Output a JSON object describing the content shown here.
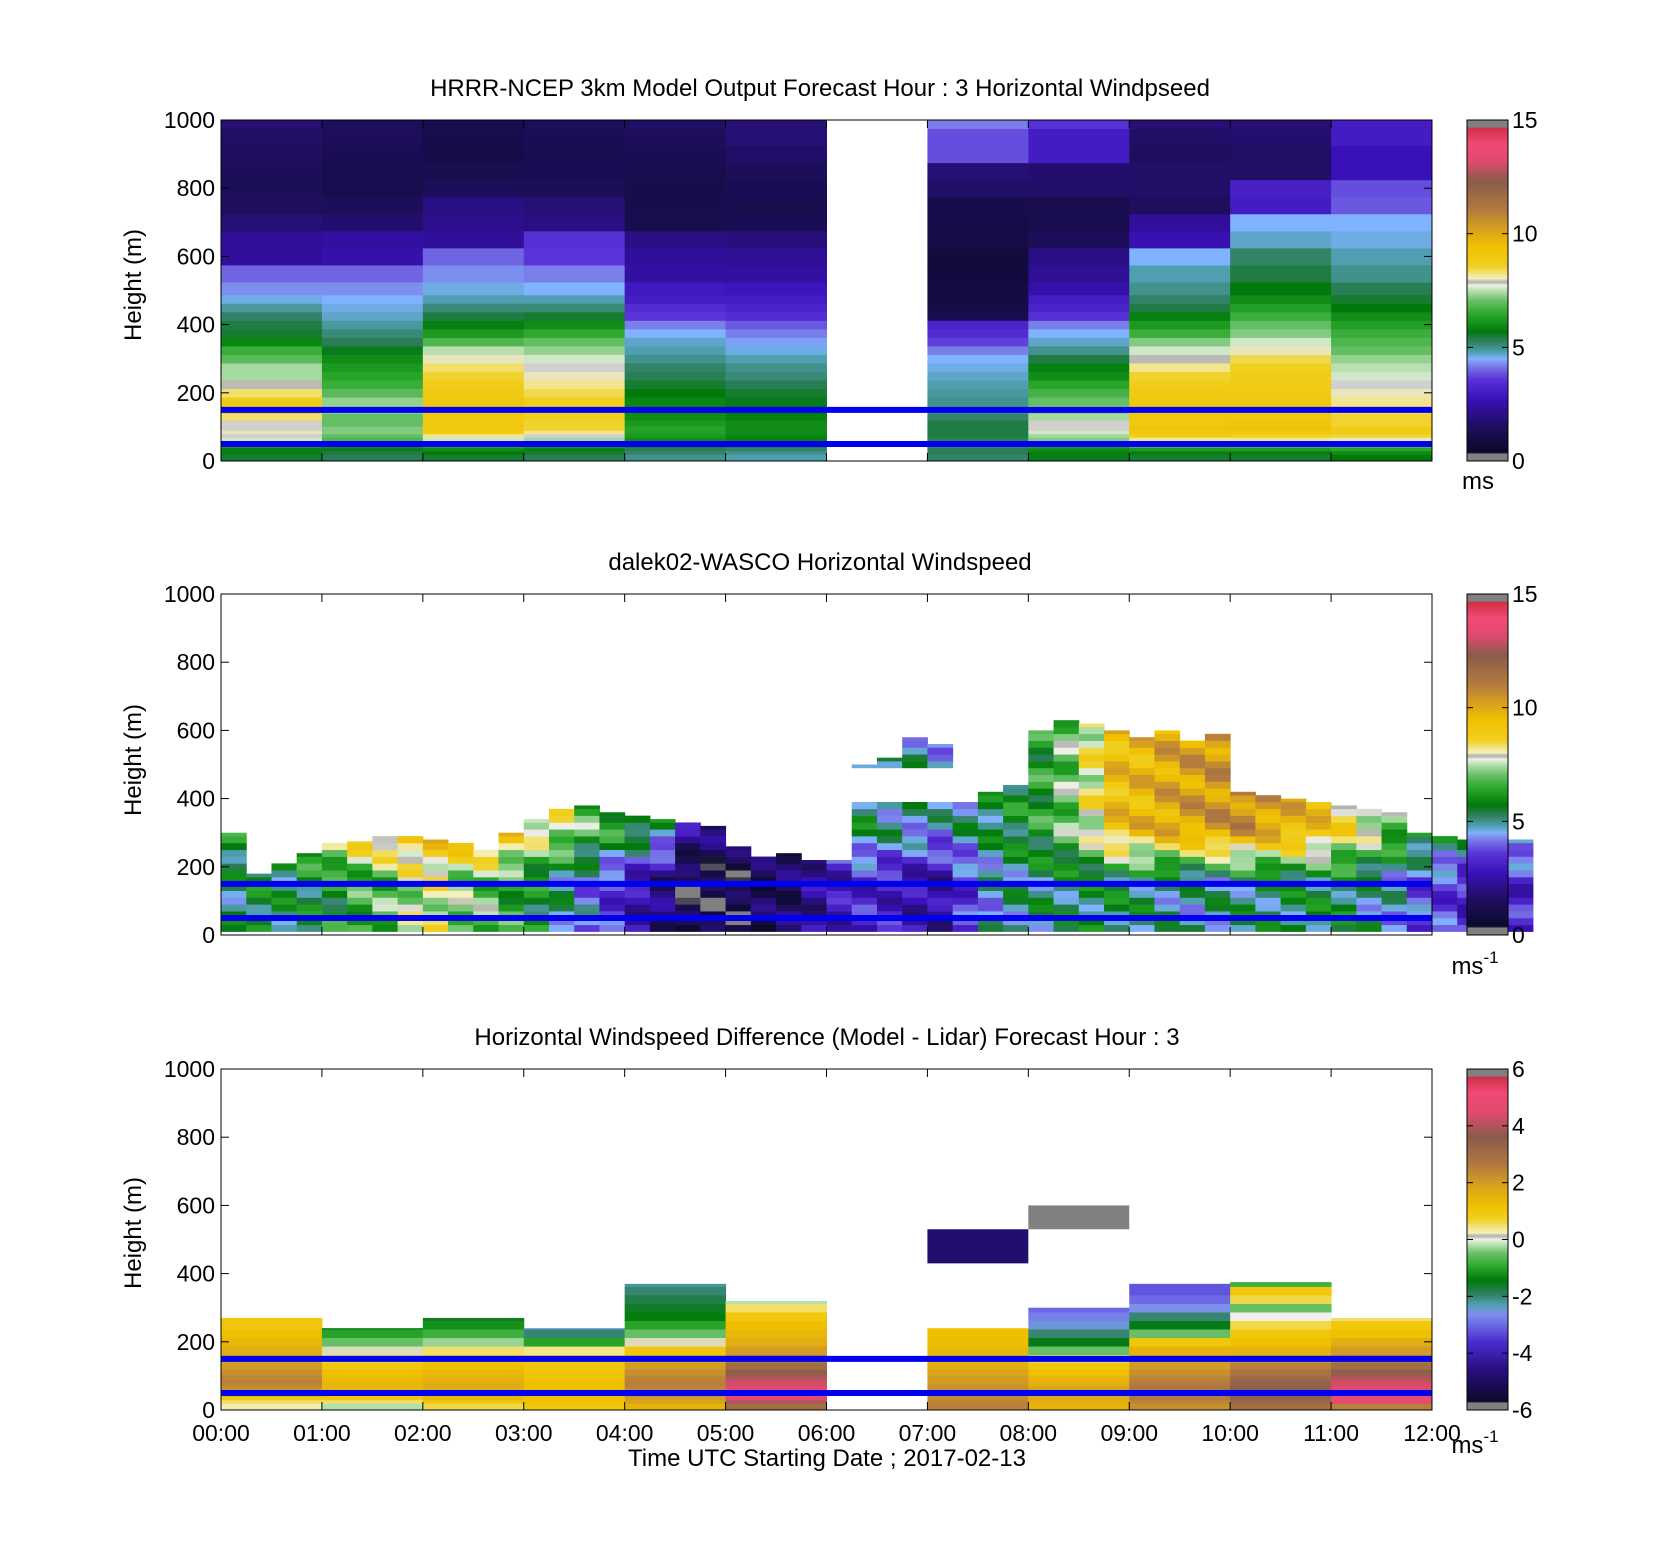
{
  "figure": {
    "xlabel": "Time UTC  Starting Date ; 2017-02-13",
    "x_ticks": [
      "00:00",
      "01:00",
      "02:00",
      "03:00",
      "04:00",
      "05:00",
      "06:00",
      "07:00",
      "08:00",
      "09:00",
      "10:00",
      "11:00",
      "12:00"
    ],
    "reference_lines_m": [
      50,
      150
    ],
    "reference_line_color": "#0000ee"
  },
  "chart_data": [
    {
      "type": "heatmap",
      "title": "HRRR-NCEP 3km Model Output   Forecast Hour : 3 Horizontal Windpseed",
      "ylabel": "Height (m)",
      "ylim": [
        0,
        1000
      ],
      "y_ticks": [
        0,
        200,
        400,
        600,
        800,
        1000
      ],
      "xlim_hours": [
        0,
        12
      ],
      "colorbar": {
        "range": [
          0,
          15
        ],
        "ticks": [
          0,
          5,
          10,
          15
        ],
        "unit": "ms",
        "unit_sup": ""
      },
      "levels_m": [
        15,
        25,
        35,
        45,
        55,
        65,
        75,
        85,
        95,
        110,
        130,
        150,
        175,
        200,
        225,
        250,
        275,
        300,
        325,
        350,
        375,
        400,
        425,
        450,
        475,
        500,
        550,
        600,
        650,
        700,
        750,
        800,
        850,
        900,
        950,
        1000
      ],
      "columns": [
        {
          "hour": 0,
          "values": [
            5.5,
            5.6,
            5.8,
            6.2,
            6.8,
            7.6,
            7.8,
            8.0,
            7.8,
            7.8,
            8.3,
            8.8,
            8.8,
            8.3,
            7.9,
            7.4,
            7.4,
            6.9,
            6.6,
            5.9,
            5.5,
            5.4,
            5.2,
            4.9,
            4.6,
            4.3,
            4.0,
            2.3,
            2.3,
            1.8,
            1.5,
            1.4,
            1.4,
            1.5,
            1.6,
            1.8
          ]
        },
        {
          "hour": 1,
          "values": [
            5.3,
            5.4,
            5.6,
            6.0,
            6.5,
            6.8,
            7.0,
            7.2,
            7.2,
            7.0,
            7.0,
            7.3,
            7.3,
            6.9,
            6.6,
            6.4,
            6.2,
            6.0,
            5.6,
            5.3,
            5.1,
            4.9,
            4.7,
            4.6,
            4.5,
            4.3,
            4.0,
            2.5,
            2.4,
            1.7,
            1.4,
            1.2,
            1.2,
            1.3,
            1.4,
            1.5
          ]
        },
        {
          "hour": 2,
          "values": [
            5.5,
            5.7,
            6.0,
            6.4,
            7.0,
            7.6,
            8.2,
            8.8,
            9.0,
            9.0,
            9.0,
            9.0,
            9.0,
            8.9,
            8.7,
            8.5,
            8.3,
            8.0,
            7.5,
            6.8,
            6.2,
            5.8,
            5.4,
            5.1,
            4.8,
            4.6,
            4.3,
            4.0,
            2.3,
            2.1,
            2.0,
            1.4,
            1.2,
            1.0,
            1.1,
            1.2
          ]
        },
        {
          "hour": 3,
          "values": [
            5.3,
            5.5,
            5.8,
            6.2,
            6.8,
            7.4,
            7.8,
            8.2,
            8.5,
            8.5,
            8.6,
            8.6,
            8.6,
            8.4,
            8.2,
            8.0,
            7.8,
            7.6,
            7.3,
            7.0,
            6.5,
            6.0,
            5.5,
            5.1,
            4.8,
            4.5,
            4.2,
            3.6,
            3.5,
            2.0,
            1.8,
            1.4,
            1.3,
            1.2,
            1.3,
            1.4
          ]
        },
        {
          "hour": 4,
          "values": [
            5.0,
            5.2,
            5.3,
            5.5,
            5.8,
            6.0,
            6.2,
            6.3,
            6.4,
            6.2,
            6.0,
            5.9,
            5.9,
            5.7,
            5.5,
            5.3,
            5.2,
            5.0,
            4.8,
            4.7,
            4.5,
            4.2,
            3.6,
            3.4,
            3.0,
            2.9,
            2.4,
            2.3,
            2.0,
            1.2,
            1.1,
            1.1,
            1.2,
            1.3,
            1.4,
            1.6
          ]
        },
        {
          "hour": 5,
          "values": [
            4.8,
            5.0,
            5.2,
            5.4,
            5.6,
            5.8,
            5.9,
            6.0,
            6.0,
            6.0,
            5.8,
            5.7,
            5.6,
            5.5,
            5.3,
            5.1,
            5.0,
            4.8,
            4.6,
            4.4,
            4.2,
            3.9,
            3.4,
            3.2,
            3.0,
            2.8,
            2.4,
            2.2,
            1.9,
            1.3,
            1.2,
            1.3,
            1.4,
            1.6,
            1.8,
            1.8
          ]
        },
        {
          "hour": 6,
          "values": null
        },
        {
          "hour": 7,
          "values": [
            5.2,
            5.3,
            5.3,
            5.2,
            5.2,
            5.3,
            5.4,
            5.4,
            5.4,
            5.4,
            5.2,
            5.0,
            5.0,
            4.9,
            4.8,
            4.7,
            4.6,
            4.5,
            4.2,
            3.7,
            3.4,
            3.2,
            1.2,
            1.0,
            0.9,
            0.9,
            0.8,
            0.8,
            1.0,
            1.0,
            1.1,
            1.6,
            1.8,
            3.8,
            3.8,
            4.2
          ]
        },
        {
          "hour": 8,
          "values": [
            5.6,
            5.8,
            6.0,
            6.3,
            6.8,
            7.2,
            7.4,
            7.6,
            7.8,
            7.8,
            7.4,
            7.2,
            7.0,
            6.7,
            6.4,
            6.0,
            5.8,
            5.4,
            5.0,
            4.7,
            4.5,
            4.2,
            3.5,
            3.2,
            3.0,
            2.5,
            2.2,
            2.0,
            1.4,
            1.2,
            1.2,
            1.6,
            1.7,
            3.0,
            3.0,
            3.5
          ]
        },
        {
          "hour": 9,
          "values": [
            5.5,
            5.8,
            6.2,
            6.8,
            7.6,
            8.2,
            8.7,
            9.0,
            9.2,
            9.0,
            9.0,
            9.0,
            9.0,
            8.9,
            8.7,
            8.5,
            8.2,
            7.9,
            7.6,
            7.2,
            6.6,
            6.2,
            5.8,
            5.4,
            5.2,
            5.0,
            4.8,
            4.5,
            2.6,
            2.3,
            1.5,
            1.6,
            1.6,
            1.5,
            1.6,
            1.8
          ]
        },
        {
          "hour": 10,
          "values": [
            5.5,
            5.8,
            6.2,
            6.8,
            7.6,
            8.2,
            8.6,
            9.0,
            9.3,
            9.2,
            9.0,
            9.0,
            9.0,
            8.9,
            8.8,
            8.7,
            8.6,
            8.4,
            8.0,
            7.6,
            7.2,
            7.0,
            6.6,
            6.3,
            6.0,
            5.7,
            5.4,
            5.2,
            4.7,
            4.5,
            3.0,
            3.1,
            1.6,
            1.6,
            1.7,
            1.8
          ]
        },
        {
          "hour": 11,
          "values": [
            5.7,
            6.0,
            6.4,
            6.8,
            7.4,
            8.0,
            8.5,
            8.8,
            8.8,
            8.5,
            8.5,
            8.3,
            8.2,
            8.0,
            7.8,
            7.6,
            7.5,
            7.3,
            7.0,
            6.8,
            6.6,
            6.3,
            6.0,
            5.7,
            5.5,
            5.3,
            5.0,
            4.8,
            4.6,
            4.5,
            3.9,
            3.8,
            2.7,
            2.7,
            3.0,
            3.0
          ]
        }
      ]
    },
    {
      "type": "heatmap",
      "title": "dalek02-WASCO  Horizontal Windspeed",
      "ylabel": "Height (m)",
      "ylim": [
        0,
        1000
      ],
      "y_ticks": [
        0,
        200,
        400,
        600,
        800,
        1000
      ],
      "xlim_hours": [
        0,
        12
      ],
      "colorbar": {
        "range": [
          0,
          15
        ],
        "ticks": [
          0,
          5,
          10,
          15
        ],
        "unit": "ms",
        "unit_sup": "-1"
      },
      "time_step_hours": 0.25,
      "range_gate_m": 20,
      "lowest_gate_m": 10,
      "top_height_m": [
        300,
        180,
        210,
        240,
        270,
        275,
        290,
        290,
        280,
        270,
        250,
        300,
        340,
        370,
        380,
        360,
        350,
        340,
        330,
        320,
        260,
        230,
        240,
        220,
        220,
        500,
        520,
        580,
        560,
        460,
        420,
        440,
        600,
        630,
        620,
        600,
        580,
        600,
        570,
        590,
        420,
        410,
        400,
        390,
        380,
        370,
        360,
        300,
        290,
        280,
        280,
        280
      ],
      "columns_speed_by_quarter_hour_low_to_high": "see script"
    },
    {
      "type": "heatmap",
      "title": "Horizontal Windspeed Difference (Model - Lidar) Forecast Hour : 3",
      "ylabel": "Height (m)",
      "ylim": [
        0,
        1000
      ],
      "y_ticks": [
        0,
        200,
        400,
        600,
        800,
        1000
      ],
      "xlim_hours": [
        0,
        12
      ],
      "colorbar": {
        "range": [
          -6,
          6
        ],
        "ticks": [
          -6,
          -4,
          -2,
          0,
          2,
          4,
          6
        ],
        "unit": "ms",
        "unit_sup": "-1"
      },
      "levels_m": [
        15,
        25,
        35,
        45,
        55,
        65,
        75,
        85,
        95,
        110,
        130,
        150,
        175,
        200,
        225,
        250,
        275,
        300,
        325,
        350,
        375
      ],
      "columns": [
        {
          "hour": 0,
          "top_m": 270,
          "values": [
            0.3,
            0.5,
            1.0,
            1.4,
            2.0,
            2.2,
            2.4,
            2.5,
            2.4,
            2.2,
            2.0,
            1.8,
            1.6,
            1.4,
            1.2,
            1.0,
            1.0,
            null,
            null,
            null,
            null
          ]
        },
        {
          "hour": 1,
          "top_m": 240,
          "values": [
            -0.2,
            0.5,
            1.0,
            1.2,
            1.3,
            1.4,
            1.4,
            1.4,
            1.3,
            1.2,
            1.0,
            0.6,
            0.2,
            -0.5,
            -1.0,
            -1.5,
            null,
            null,
            null,
            null,
            null
          ]
        },
        {
          "hour": 2,
          "top_m": 270,
          "values": [
            0.6,
            1.0,
            1.4,
            1.5,
            1.6,
            1.6,
            1.7,
            1.6,
            1.5,
            1.4,
            1.2,
            1.0,
            0.5,
            -0.3,
            -0.8,
            -1.2,
            -1.6,
            null,
            null,
            null,
            null
          ]
        },
        {
          "hour": 3,
          "top_m": 240,
          "values": [
            1.0,
            1.1,
            1.1,
            1.2,
            1.2,
            1.2,
            1.2,
            1.2,
            1.1,
            1.1,
            1.0,
            0.8,
            0.4,
            -1.0,
            -2.0,
            -2.5,
            null,
            null,
            null,
            null,
            null
          ]
        },
        {
          "hour": 4,
          "top_m": 370,
          "values": [
            1.5,
            1.8,
            2.0,
            2.2,
            2.3,
            2.4,
            2.5,
            2.5,
            2.4,
            2.2,
            2.0,
            1.5,
            1.0,
            0.2,
            -0.5,
            -1.0,
            -1.4,
            -1.6,
            -1.8,
            -2.0,
            -2.2
          ]
        },
        {
          "hour": 5,
          "top_m": 320,
          "values": [
            3.0,
            4.0,
            4.5,
            4.8,
            4.8,
            4.6,
            4.4,
            4.2,
            4.0,
            3.5,
            3.0,
            2.5,
            2.0,
            1.6,
            1.4,
            1.2,
            1.0,
            0.5,
            -0.2,
            null,
            null
          ]
        },
        {
          "hour": 6,
          "top_m": 0,
          "values": null
        },
        {
          "hour": 7,
          "top_m": 240,
          "values": [
            2.5,
            2.4,
            2.3,
            2.3,
            2.2,
            2.2,
            2.1,
            2.0,
            2.0,
            1.8,
            1.6,
            1.5,
            1.4,
            1.3,
            1.2,
            1.0,
            null,
            null,
            null,
            null,
            null
          ],
          "extra_blocks": [
            {
              "from_m": 430,
              "to_m": 530,
              "value": -4.8
            }
          ]
        },
        {
          "hour": 8,
          "top_m": 300,
          "values": [
            1.5,
            1.6,
            1.7,
            1.8,
            1.8,
            1.8,
            1.6,
            1.5,
            1.4,
            1.2,
            1.0,
            0.5,
            -0.5,
            -1.5,
            -2.0,
            -2.5,
            -2.8,
            -3.0,
            null,
            null,
            null
          ],
          "extra_blocks": [
            {
              "from_m": 530,
              "to_m": 600,
              "value": -5.8
            }
          ]
        },
        {
          "hour": 9,
          "top_m": 370,
          "values": [
            2.2,
            2.4,
            2.6,
            2.6,
            2.7,
            2.7,
            2.6,
            2.5,
            2.4,
            2.2,
            2.0,
            1.8,
            1.5,
            1.0,
            -0.5,
            -1.5,
            -2.0,
            -2.6,
            -3.0,
            -3.2,
            -3.2
          ]
        },
        {
          "hour": 10,
          "top_m": 380,
          "values": [
            3.0,
            3.2,
            3.4,
            3.5,
            3.5,
            3.5,
            3.4,
            3.3,
            3.1,
            2.8,
            2.5,
            2.0,
            1.5,
            1.2,
            1.0,
            0.6,
            0.0,
            -0.5,
            0.6,
            1.0,
            -0.8
          ]
        },
        {
          "hour": 11,
          "top_m": 270,
          "values": [
            2.5,
            4.6,
            4.8,
            4.8,
            4.8,
            4.6,
            4.4,
            4.2,
            4.0,
            3.5,
            3.0,
            2.5,
            2.0,
            1.6,
            1.2,
            1.0,
            0.5,
            null,
            null,
            null,
            null
          ]
        }
      ]
    }
  ]
}
